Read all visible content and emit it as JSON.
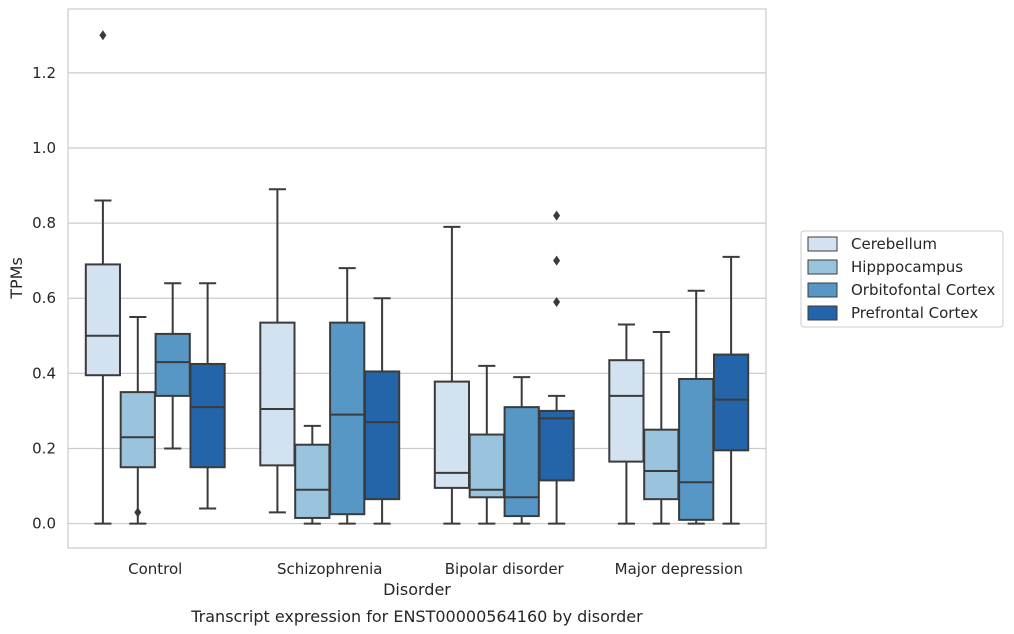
{
  "chart_data": {
    "type": "box",
    "caption": "Transcript expression for ENST00000564160 by disorder",
    "xlabel": "Disorder",
    "ylabel": "TPMs",
    "ylim": [
      -0.065,
      1.37
    ],
    "yticks": [
      "0.0",
      "0.2",
      "0.4",
      "0.6",
      "0.8",
      "1.0",
      "1.2"
    ],
    "grid": "horizontal",
    "legend_position": "right",
    "categories": [
      "Control",
      "Schizophrenia",
      "Bipolar disorder",
      "Major depression"
    ],
    "series": [
      {
        "name": "Cerebellum",
        "color": "#d3e2f1",
        "boxes": [
          {
            "whisker_low": 0.0,
            "q1": 0.395,
            "median": 0.5,
            "q3": 0.69,
            "whisker_high": 0.86,
            "outliers": [
              1.3
            ]
          },
          {
            "whisker_low": 0.03,
            "q1": 0.155,
            "median": 0.305,
            "q3": 0.535,
            "whisker_high": 0.89,
            "outliers": []
          },
          {
            "whisker_low": 0.0,
            "q1": 0.095,
            "median": 0.135,
            "q3": 0.378,
            "whisker_high": 0.79,
            "outliers": []
          },
          {
            "whisker_low": 0.0,
            "q1": 0.165,
            "median": 0.34,
            "q3": 0.435,
            "whisker_high": 0.53,
            "outliers": []
          }
        ]
      },
      {
        "name": "Hipppocampus",
        "color": "#9ac4dd",
        "boxes": [
          {
            "whisker_low": 0.0,
            "q1": 0.15,
            "median": 0.23,
            "q3": 0.35,
            "whisker_high": 0.55,
            "outliers": [
              0.03
            ]
          },
          {
            "whisker_low": 0.0,
            "q1": 0.015,
            "median": 0.09,
            "q3": 0.21,
            "whisker_high": 0.26,
            "outliers": []
          },
          {
            "whisker_low": 0.0,
            "q1": 0.07,
            "median": 0.09,
            "q3": 0.237,
            "whisker_high": 0.42,
            "outliers": []
          },
          {
            "whisker_low": 0.0,
            "q1": 0.065,
            "median": 0.14,
            "q3": 0.25,
            "whisker_high": 0.51,
            "outliers": []
          }
        ]
      },
      {
        "name": "Orbitofontal Cortex",
        "color": "#5797c6",
        "boxes": [
          {
            "whisker_low": 0.2,
            "q1": 0.34,
            "median": 0.43,
            "q3": 0.505,
            "whisker_high": 0.64,
            "outliers": []
          },
          {
            "whisker_low": 0.0,
            "q1": 0.025,
            "median": 0.29,
            "q3": 0.535,
            "whisker_high": 0.68,
            "outliers": []
          },
          {
            "whisker_low": 0.0,
            "q1": 0.02,
            "median": 0.07,
            "q3": 0.31,
            "whisker_high": 0.39,
            "outliers": []
          },
          {
            "whisker_low": 0.0,
            "q1": 0.01,
            "median": 0.11,
            "q3": 0.385,
            "whisker_high": 0.62,
            "outliers": []
          }
        ]
      },
      {
        "name": "Prefrontal Cortex",
        "color": "#2464a8",
        "boxes": [
          {
            "whisker_low": 0.04,
            "q1": 0.15,
            "median": 0.31,
            "q3": 0.425,
            "whisker_high": 0.64,
            "outliers": []
          },
          {
            "whisker_low": 0.0,
            "q1": 0.065,
            "median": 0.27,
            "q3": 0.405,
            "whisker_high": 0.6,
            "outliers": []
          },
          {
            "whisker_low": 0.0,
            "q1": 0.115,
            "median": 0.28,
            "q3": 0.3,
            "whisker_high": 0.34,
            "outliers": [
              0.82,
              0.7,
              0.59
            ]
          },
          {
            "whisker_low": 0.0,
            "q1": 0.195,
            "median": 0.33,
            "q3": 0.45,
            "whisker_high": 0.71,
            "outliers": []
          }
        ]
      }
    ]
  }
}
